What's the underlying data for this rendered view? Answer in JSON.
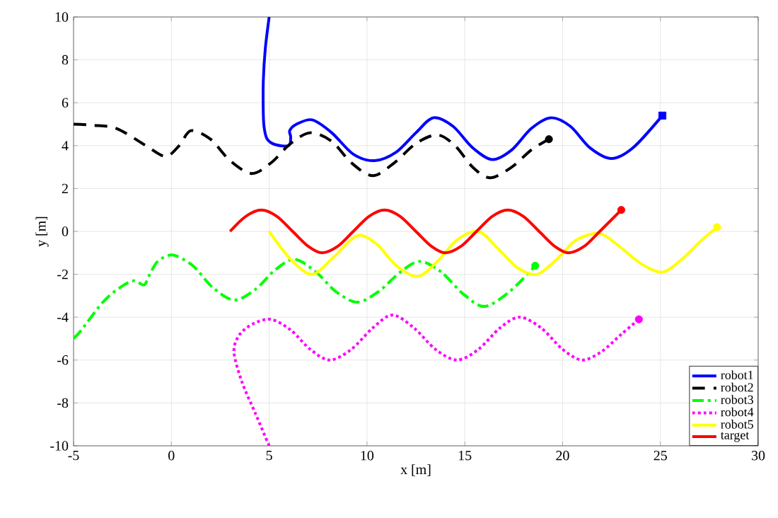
{
  "chart_data": {
    "type": "line",
    "xlabel": "x [m]",
    "ylabel": "y [m]",
    "xlim": [
      -5,
      30
    ],
    "xticks": [
      -5,
      0,
      5,
      10,
      15,
      20,
      25,
      30
    ],
    "ylim": [
      -10,
      10
    ],
    "yticks": [
      -10,
      -8,
      -6,
      -4,
      -2,
      0,
      2,
      4,
      6,
      8,
      10
    ],
    "grid": true,
    "legend": "bottom right",
    "series": [
      {
        "name": "robot1",
        "color": "#0000ff",
        "line_style": "solid",
        "x": [
          5,
          4.8,
          4.7,
          4.7,
          4.75,
          4.9,
          5.3,
          6.0,
          6.1,
          6.05,
          6.4,
          7.2,
          8.2,
          9.3,
          10.4,
          11.5,
          12.5,
          13.4,
          14.4,
          15.4,
          16.4,
          17.4,
          18.4,
          19.4,
          20.4,
          21.4,
          22.5,
          23.6,
          25.1
        ],
        "values": [
          10,
          8.5,
          7,
          5.5,
          4.8,
          4.3,
          4.05,
          4.0,
          4.4,
          4.7,
          5.0,
          5.2,
          4.6,
          3.6,
          3.3,
          3.7,
          4.6,
          5.3,
          4.9,
          3.9,
          3.35,
          3.8,
          4.8,
          5.3,
          4.9,
          3.9,
          3.4,
          3.9,
          5.4
        ]
      },
      {
        "name": "robot2",
        "color": "#000000",
        "line_style": "dashed",
        "x": [
          -5,
          -4,
          -2.8,
          -1.3,
          -0.3,
          0.4,
          1.0,
          2.0,
          3.0,
          4.1,
          5.1,
          6.1,
          7.1,
          8.2,
          9.2,
          10.3,
          11.4,
          12.5,
          13.6,
          14.5,
          15.4,
          16.3,
          17.4,
          18.4,
          19.3
        ],
        "values": [
          5,
          4.95,
          4.8,
          4.0,
          3.5,
          4.0,
          4.7,
          4.3,
          3.3,
          2.7,
          3.2,
          4.1,
          4.6,
          4.2,
          3.2,
          2.6,
          3.2,
          4.1,
          4.5,
          4.0,
          3.0,
          2.5,
          3.0,
          3.8,
          4.3
        ]
      },
      {
        "name": "robot3",
        "color": "#00ff00",
        "line_style": "dashdot",
        "x": [
          -5,
          -4.6,
          -3.5,
          -2.6,
          -1.9,
          -1.4,
          -1.1,
          -0.7,
          0.06,
          1.1,
          2.1,
          3.2,
          4.3,
          5.3,
          6.3,
          7.4,
          8.4,
          9.5,
          10.6,
          11.7,
          12.7,
          13.8,
          14.9,
          16.0,
          17.3,
          18.6
        ],
        "values": [
          -5,
          -4.6,
          -3.3,
          -2.6,
          -2.3,
          -2.5,
          -2.0,
          -1.4,
          -1.1,
          -1.6,
          -2.6,
          -3.2,
          -2.7,
          -1.8,
          -1.3,
          -1.9,
          -2.8,
          -3.3,
          -2.8,
          -1.9,
          -1.4,
          -1.9,
          -2.9,
          -3.5,
          -2.8,
          -1.6
        ]
      },
      {
        "name": "robot4",
        "color": "#ff00ff",
        "line_style": "dotted",
        "x": [
          5.0,
          4.3,
          3.6,
          3.2,
          3.5,
          4.2,
          5.1,
          6.1,
          7.1,
          8.1,
          9.2,
          10.3,
          11.3,
          12.4,
          13.5,
          14.6,
          15.7,
          16.8,
          17.8,
          18.9,
          20.0,
          21.0,
          22.0,
          23.0,
          23.9
        ],
        "values": [
          -10,
          -8.5,
          -7,
          -5.6,
          -4.8,
          -4.3,
          -4.1,
          -4.6,
          -5.5,
          -6.0,
          -5.5,
          -4.5,
          -3.9,
          -4.5,
          -5.5,
          -6.0,
          -5.5,
          -4.5,
          -4.0,
          -4.5,
          -5.5,
          -6.0,
          -5.6,
          -4.8,
          -4.1
        ]
      },
      {
        "name": "robot5",
        "color": "#ffff00",
        "line_style": "solid",
        "x": [
          5,
          6.1,
          7.2,
          8.3,
          9.5,
          10.5,
          11.5,
          12.6,
          13.6,
          14.6,
          15.7,
          16.7,
          17.7,
          18.7,
          19.7,
          20.7,
          21.9,
          22.9,
          24.0,
          25.1,
          26.1,
          27.0,
          27.9
        ],
        "values": [
          0,
          -1.3,
          -2.0,
          -1.2,
          -0.2,
          -0.6,
          -1.6,
          -2.1,
          -1.4,
          -0.4,
          0,
          -0.8,
          -1.7,
          -2.0,
          -1.3,
          -0.4,
          -0.1,
          -0.7,
          -1.5,
          -1.9,
          -1.3,
          -0.5,
          0.2
        ]
      },
      {
        "name": "target",
        "color": "#ff0000",
        "line_style": "solid",
        "x": [
          3,
          3.8,
          4.6,
          5.4,
          6.2,
          7.0,
          7.7,
          8.5,
          9.3,
          10.1,
          10.9,
          11.7,
          12.5,
          13.3,
          14.0,
          14.8,
          15.6,
          16.4,
          17.2,
          18.0,
          18.8,
          19.6,
          20.3,
          21.1,
          21.9,
          23
        ],
        "values": [
          0,
          0.7,
          1,
          0.7,
          0,
          -0.7,
          -1,
          -0.7,
          0,
          0.7,
          1,
          0.7,
          0,
          -0.7,
          -1,
          -0.7,
          0,
          0.7,
          1,
          0.7,
          0,
          -0.7,
          -1,
          -0.7,
          0,
          1
        ]
      },
      {
        "type": "scatter",
        "color": "#0000ff",
        "marker": "square",
        "x": [
          25.1
        ],
        "values": [
          5.4
        ]
      },
      {
        "type": "scatter",
        "color": "#000000",
        "marker": "circle",
        "x": [
          19.3
        ],
        "values": [
          4.3
        ]
      },
      {
        "type": "scatter",
        "color": "#00ff00",
        "marker": "circle",
        "x": [
          18.6
        ],
        "values": [
          -1.6
        ]
      },
      {
        "type": "scatter",
        "color": "#ff00ff",
        "marker": "circle",
        "x": [
          23.9
        ],
        "values": [
          -4.1
        ]
      },
      {
        "type": "scatter",
        "color": "#ffff00",
        "marker": "circle",
        "x": [
          27.9
        ],
        "values": [
          0.2
        ]
      },
      {
        "type": "scatter",
        "color": "#ff0000",
        "marker": "circle",
        "x": [
          23
        ],
        "values": [
          1
        ]
      }
    ]
  }
}
